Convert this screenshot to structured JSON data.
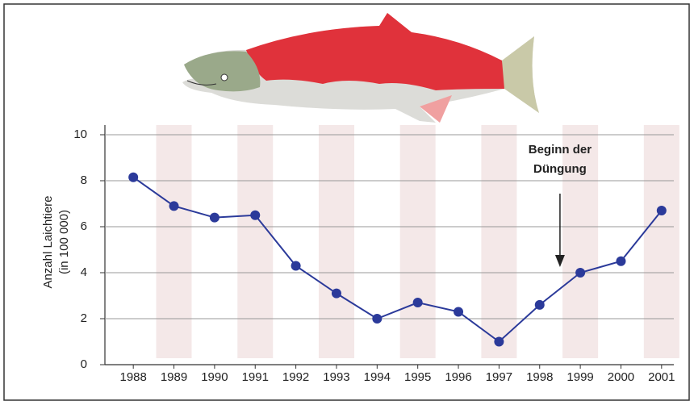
{
  "chart_data": {
    "type": "line",
    "ylabel": [
      "Anzahl Laichtiere",
      "(in 100 000)"
    ],
    "annotation": [
      "Beginn der",
      "Düngung"
    ],
    "categories": [
      "1988",
      "1989",
      "1990",
      "1991",
      "1992",
      "1993",
      "1994",
      "1995",
      "1996",
      "1997",
      "1998",
      "1999",
      "2000",
      "2001"
    ],
    "values": [
      8.15,
      6.9,
      6.4,
      6.5,
      4.3,
      3.1,
      2.0,
      2.7,
      2.3,
      1.0,
      2.6,
      4.0,
      4.5,
      6.7
    ],
    "color": "#2b3a9a",
    "ylim": [
      0,
      10
    ],
    "yticks": [
      0,
      2,
      4,
      6,
      8,
      10
    ],
    "grid": true
  }
}
